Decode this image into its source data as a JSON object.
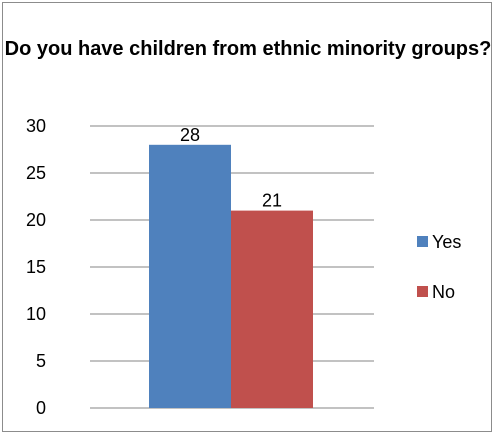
{
  "chart_data": {
    "type": "bar",
    "title": "Do you have children from ethnic minority groups?",
    "categories": [
      ""
    ],
    "series": [
      {
        "name": "Yes",
        "values": [
          28
        ],
        "color": "#4f81bd"
      },
      {
        "name": "No",
        "values": [
          21
        ],
        "color": "#c0504d"
      }
    ],
    "ylim": [
      0,
      30
    ],
    "yticks": [
      "0",
      "5",
      "10",
      "15",
      "20",
      "25",
      "30"
    ],
    "data_labels": [
      "28",
      "21"
    ],
    "grid": true,
    "legend": "right"
  }
}
